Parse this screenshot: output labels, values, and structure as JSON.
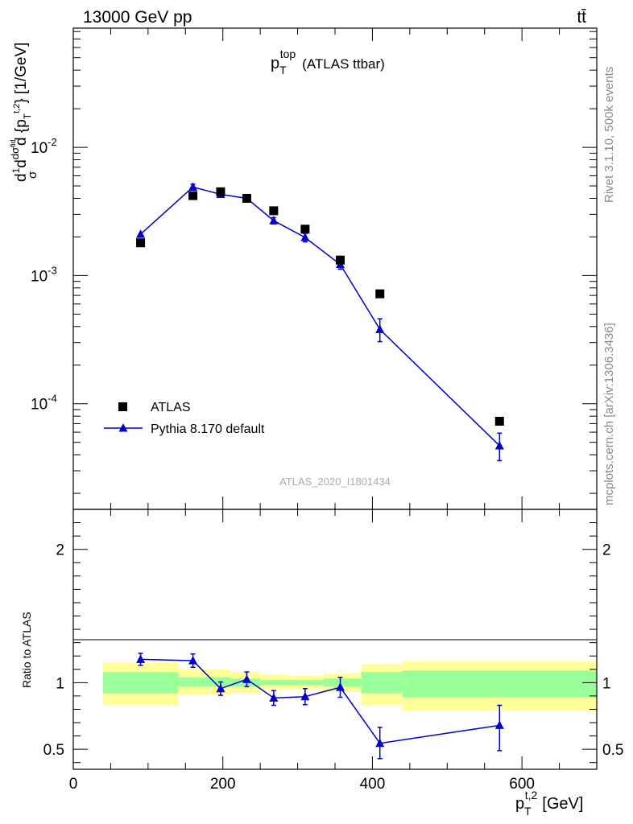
{
  "header": {
    "energy_label": "13000 GeV pp",
    "process_label": "tt̄"
  },
  "side_labels": {
    "rivet": "Rivet 3.1.10,  500k events",
    "mcplots": "mcplots.cern.ch [arXiv:1306.3436]"
  },
  "analysis_tag": "ATLAS_2020_I1801434",
  "colors": {
    "data": "#000000",
    "mc": "#0000cc",
    "band_inner": "#99ff99",
    "band_outer": "#ffff99",
    "side_text": "#888888",
    "tag_text": "#aaaaaa"
  },
  "chart_data": [
    {
      "type": "scatter",
      "panel": "main",
      "title_main": "p",
      "title_sup": "top",
      "title_sub": "T",
      "title_suffix": "(ATLAS ttbar)",
      "ylabel": "d 1/σ dσ^fid / d{p_T^t,2} [1/GeV]",
      "yscale": "log",
      "ylim": [
        1.5e-05,
        0.085
      ],
      "xlim": [
        0,
        700
      ],
      "y_tick_labels": [
        "10^-4",
        "10^-3",
        "10^-2"
      ],
      "legend": {
        "position": "bottom-left",
        "entries": [
          "ATLAS",
          "Pythia 8.170 default"
        ]
      },
      "series": [
        {
          "name": "ATLAS",
          "marker": "square",
          "x": [
            90,
            160,
            197,
            232,
            268,
            310,
            357,
            410,
            570
          ],
          "y": [
            0.0018,
            0.0042,
            0.0045,
            0.004,
            0.0032,
            0.0023,
            0.00132,
            0.00072,
            7.3e-05
          ]
        },
        {
          "name": "Pythia 8.170 default",
          "marker": "triangle",
          "x": [
            90,
            160,
            197,
            232,
            268,
            310,
            357,
            410,
            570
          ],
          "y": [
            0.0021,
            0.0049,
            0.0043,
            0.004,
            0.00268,
            0.00198,
            0.00122,
            0.00038,
            4.7e-05
          ],
          "err_lo": [
            0,
            0.00025,
            0,
            0,
            0.00015,
            0.00015,
            0.0001,
            7.5e-05,
            1.1e-05
          ],
          "err_hi": [
            0,
            0.00025,
            0,
            0,
            0.00015,
            0.00015,
            0.0001,
            8e-05,
            1.2e-05
          ]
        }
      ]
    },
    {
      "type": "line",
      "panel": "ratio",
      "ylabel": "Ratio to ATLAS",
      "xlabel_main": "p",
      "xlabel_sup": "t,2",
      "xlabel_sub": "T",
      "xlabel_unit": "[GeV]",
      "xlim": [
        0,
        700
      ],
      "ylim": [
        0.35,
        2.3
      ],
      "x_tick_labels": [
        "0",
        "200",
        "400",
        "600"
      ],
      "y_tick_labels": [
        "0.5",
        "1",
        "2"
      ],
      "bands": [
        {
          "x0": 40,
          "x1": 140,
          "inner": [
            0.92,
            1.08
          ],
          "outer": [
            0.83,
            1.15
          ]
        },
        {
          "x0": 140,
          "x1": 210,
          "inner": [
            0.97,
            1.04
          ],
          "outer": [
            0.91,
            1.1
          ]
        },
        {
          "x0": 210,
          "x1": 250,
          "inner": [
            0.97,
            1.03
          ],
          "outer": [
            0.92,
            1.08
          ]
        },
        {
          "x0": 250,
          "x1": 290,
          "inner": [
            0.98,
            1.02
          ],
          "outer": [
            0.95,
            1.06
          ]
        },
        {
          "x0": 290,
          "x1": 335,
          "inner": [
            0.98,
            1.02
          ],
          "outer": [
            0.95,
            1.05
          ]
        },
        {
          "x0": 335,
          "x1": 385,
          "inner": [
            0.97,
            1.03
          ],
          "outer": [
            0.93,
            1.07
          ]
        },
        {
          "x0": 385,
          "x1": 440,
          "inner": [
            0.92,
            1.08
          ],
          "outer": [
            0.83,
            1.14
          ]
        },
        {
          "x0": 440,
          "x1": 700,
          "inner": [
            0.89,
            1.09
          ],
          "outer": [
            0.79,
            1.16
          ]
        }
      ],
      "series": [
        {
          "name": "Pythia 8.170 default",
          "x": [
            90,
            160,
            197,
            232,
            268,
            310,
            357,
            410,
            570
          ],
          "y": [
            1.175,
            1.165,
            0.955,
            1.025,
            0.885,
            0.895,
            0.965,
            0.545,
            0.68
          ],
          "err_lo": [
            0.045,
            0.05,
            0.05,
            0.055,
            0.055,
            0.06,
            0.075,
            0.115,
            0.19
          ],
          "err_hi": [
            0.045,
            0.05,
            0.05,
            0.055,
            0.055,
            0.06,
            0.075,
            0.12,
            0.15
          ]
        }
      ]
    }
  ]
}
